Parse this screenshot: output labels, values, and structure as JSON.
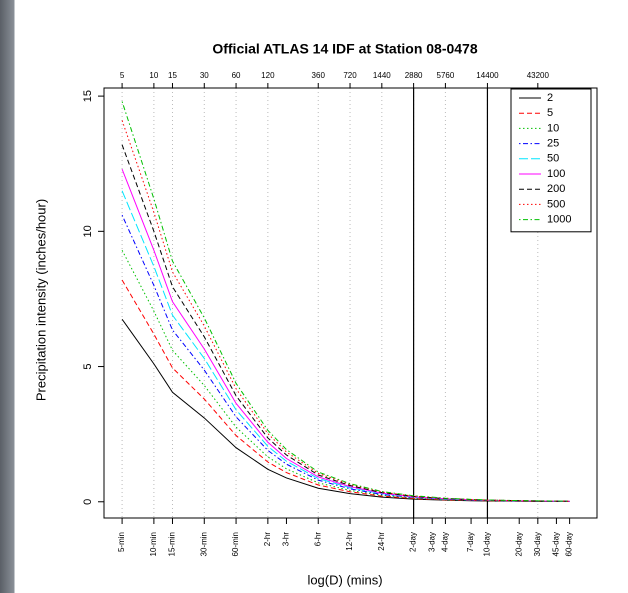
{
  "chart_data": {
    "type": "line",
    "title": "Official ATLAS 14 IDF at Station 08-0478",
    "x_label": "log(D) (mins)",
    "y_label": "Precipitation intensity (inches/hour)",
    "x_log": true,
    "grid": true,
    "legend": "top-right",
    "x": [
      5,
      10,
      15,
      30,
      60,
      120,
      180,
      360,
      720,
      1440,
      2880,
      4320,
      5760,
      10080,
      14400,
      28800,
      43200,
      64800,
      86400
    ],
    "xlim": [
      3.37,
      157000
    ],
    "ylim": [
      -0.6,
      15.3
    ],
    "yticks": [
      0,
      5,
      10,
      15
    ],
    "xticks": [
      {
        "value": 5,
        "label": "5-min"
      },
      {
        "value": 10,
        "label": "10-min"
      },
      {
        "value": 15,
        "label": "15-min"
      },
      {
        "value": 30,
        "label": "30-min"
      },
      {
        "value": 60,
        "label": "60-min"
      },
      {
        "value": 120,
        "label": "2-hr"
      },
      {
        "value": 180,
        "label": "3-hr"
      },
      {
        "value": 360,
        "label": "6-hr"
      },
      {
        "value": 720,
        "label": "12-hr"
      },
      {
        "value": 1440,
        "label": "24-hr"
      },
      {
        "value": 2880,
        "label": "2-day"
      },
      {
        "value": 4320,
        "label": "3-day"
      },
      {
        "value": 5760,
        "label": "4-day"
      },
      {
        "value": 10080,
        "label": "7-day"
      },
      {
        "value": 14400,
        "label": "10-day"
      },
      {
        "value": 28800,
        "label": "20-day"
      },
      {
        "value": 43200,
        "label": "30-day"
      },
      {
        "value": 64800,
        "label": "45-day"
      },
      {
        "value": 86400,
        "label": "60-day"
      }
    ],
    "x2ticks": [
      5,
      10,
      15,
      30,
      60,
      120,
      360,
      720,
      1440,
      2880,
      5760,
      14400,
      43200
    ],
    "vlines": [
      2880,
      14400
    ],
    "series": [
      {
        "name": "2",
        "color": "#000000",
        "dash": "solid",
        "values": [
          6.75,
          5.1,
          4.05,
          3.1,
          2.0,
          1.2,
          0.88,
          0.5,
          0.3,
          0.17,
          0.1,
          0.075,
          0.06,
          0.04,
          0.03,
          0.02,
          0.016,
          0.012,
          0.01
        ]
      },
      {
        "name": "5",
        "color": "#ff0000",
        "dash": "dashed",
        "values": [
          8.2,
          6.2,
          4.95,
          3.8,
          2.45,
          1.47,
          1.08,
          0.62,
          0.37,
          0.21,
          0.12,
          0.09,
          0.07,
          0.05,
          0.04,
          0.025,
          0.02,
          0.015,
          0.012
        ]
      },
      {
        "name": "10",
        "color": "#00c000",
        "dash": "dotted",
        "values": [
          9.3,
          7.05,
          5.6,
          4.3,
          2.76,
          1.66,
          1.22,
          0.7,
          0.42,
          0.24,
          0.14,
          0.1,
          0.08,
          0.056,
          0.042,
          0.028,
          0.022,
          0.017,
          0.014
        ]
      },
      {
        "name": "25",
        "color": "#0000ff",
        "dash": "dotdash",
        "values": [
          10.6,
          8.0,
          6.35,
          4.87,
          3.14,
          1.9,
          1.39,
          0.8,
          0.48,
          0.27,
          0.16,
          0.12,
          0.095,
          0.063,
          0.048,
          0.032,
          0.025,
          0.019,
          0.016
        ]
      },
      {
        "name": "50",
        "color": "#00e5ff",
        "dash": "longdash",
        "values": [
          11.5,
          8.7,
          6.9,
          5.3,
          3.4,
          2.05,
          1.5,
          0.86,
          0.52,
          0.3,
          0.17,
          0.13,
          0.1,
          0.068,
          0.052,
          0.034,
          0.027,
          0.021,
          0.017
        ]
      },
      {
        "name": "100",
        "color": "#ff00ff",
        "dash": "solid",
        "values": [
          12.3,
          9.3,
          7.4,
          5.65,
          3.64,
          2.2,
          1.6,
          0.92,
          0.56,
          0.32,
          0.18,
          0.14,
          0.11,
          0.073,
          0.055,
          0.037,
          0.029,
          0.022,
          0.018
        ]
      },
      {
        "name": "200",
        "color": "#000000",
        "dash": "dashed",
        "values": [
          13.2,
          10.0,
          7.95,
          6.1,
          3.92,
          2.36,
          1.73,
          0.99,
          0.6,
          0.34,
          0.2,
          0.15,
          0.12,
          0.08,
          0.06,
          0.04,
          0.031,
          0.024,
          0.02
        ]
      },
      {
        "name": "500",
        "color": "#ff0000",
        "dash": "dotted",
        "values": [
          14.1,
          10.7,
          8.5,
          6.5,
          4.18,
          2.52,
          1.84,
          1.05,
          0.64,
          0.36,
          0.21,
          0.16,
          0.13,
          0.085,
          0.063,
          0.042,
          0.034,
          0.025,
          0.021
        ]
      },
      {
        "name": "1000",
        "color": "#00c000",
        "dash": "dotdash",
        "values": [
          14.8,
          11.2,
          8.9,
          6.8,
          4.38,
          2.64,
          1.93,
          1.1,
          0.67,
          0.38,
          0.22,
          0.17,
          0.13,
          0.09,
          0.066,
          0.044,
          0.035,
          0.027,
          0.022
        ]
      }
    ]
  }
}
